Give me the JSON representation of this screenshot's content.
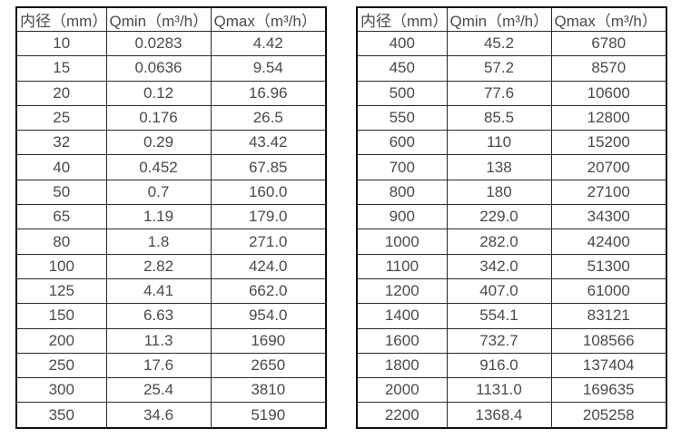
{
  "colors": {
    "background": "#ffffff",
    "outer_border": "#0f0f0f",
    "grid_line": "#2a2a2a",
    "text": "#4a4a4a"
  },
  "tables": [
    {
      "name": "flow-rate-table-small-diameters",
      "headers": [
        "内径（mm）",
        "Qmin（m³/h）",
        "Qmax（m³/h）"
      ],
      "rows": [
        [
          "10",
          "0.0283",
          "4.42"
        ],
        [
          "15",
          "0.0636",
          "9.54"
        ],
        [
          "20",
          "0.12",
          "16.96"
        ],
        [
          "25",
          "0.176",
          "26.5"
        ],
        [
          "32",
          "0.29",
          "43.42"
        ],
        [
          "40",
          "0.452",
          "67.85"
        ],
        [
          "50",
          "0.7",
          "160.0"
        ],
        [
          "65",
          "1.19",
          "179.0"
        ],
        [
          "80",
          "1.8",
          "271.0"
        ],
        [
          "100",
          "2.82",
          "424.0"
        ],
        [
          "125",
          "4.41",
          "662.0"
        ],
        [
          "150",
          "6.63",
          "954.0"
        ],
        [
          "200",
          "11.3",
          "1690"
        ],
        [
          "250",
          "17.6",
          "2650"
        ],
        [
          "300",
          "25.4",
          "3810"
        ],
        [
          "350",
          "34.6",
          "5190"
        ]
      ]
    },
    {
      "name": "flow-rate-table-large-diameters",
      "headers": [
        "内径（mm）",
        "Qmin（m³/h）",
        "Qmax（m³/h）"
      ],
      "rows": [
        [
          "400",
          "45.2",
          "6780"
        ],
        [
          "450",
          "57.2",
          "8570"
        ],
        [
          "500",
          "77.6",
          "10600"
        ],
        [
          "550",
          "85.5",
          "12800"
        ],
        [
          "600",
          "110",
          "15200"
        ],
        [
          "700",
          "138",
          "20700"
        ],
        [
          "800",
          "180",
          "27100"
        ],
        [
          "900",
          "229.0",
          "34300"
        ],
        [
          "1000",
          "282.0",
          "42400"
        ],
        [
          "1100",
          "342.0",
          "51300"
        ],
        [
          "1200",
          "407.0",
          "61000"
        ],
        [
          "1400",
          "554.1",
          "83121"
        ],
        [
          "1600",
          "732.7",
          "108566"
        ],
        [
          "1800",
          "916.0",
          "137404"
        ],
        [
          "2000",
          "1131.0",
          "169635"
        ],
        [
          "2200",
          "1368.4",
          "205258"
        ]
      ]
    }
  ]
}
